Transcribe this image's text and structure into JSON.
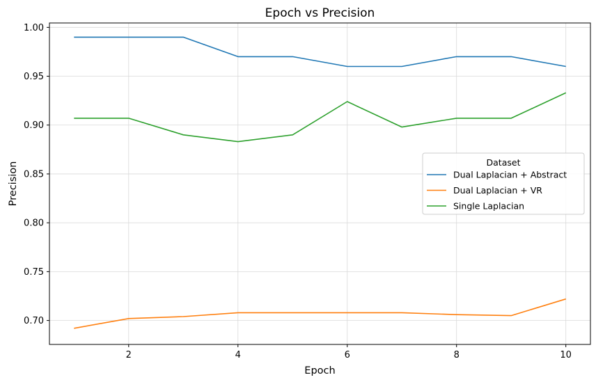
{
  "chart_data": {
    "type": "line",
    "title": "Epoch vs Precision",
    "xlabel": "Epoch",
    "ylabel": "Precision",
    "x": [
      1,
      2,
      3,
      4,
      5,
      6,
      7,
      8,
      9,
      10
    ],
    "xlim": [
      0.55,
      10.45
    ],
    "ylim": [
      0.6755,
      1.0045
    ],
    "xticks": [
      2,
      4,
      6,
      8,
      10
    ],
    "yticks": [
      0.7,
      0.75,
      0.8,
      0.85,
      0.9,
      0.95,
      1.0
    ],
    "ytick_labels": [
      "0.70",
      "0.75",
      "0.80",
      "0.85",
      "0.90",
      "0.95",
      "1.00"
    ],
    "grid": true,
    "legend": {
      "title": "Dataset",
      "placement": "center-right"
    },
    "series": [
      {
        "name": "Dual Laplacian + Abstract",
        "color": "#1f77b4",
        "values": [
          0.99,
          0.99,
          0.99,
          0.97,
          0.97,
          0.96,
          0.96,
          0.97,
          0.97,
          0.96
        ]
      },
      {
        "name": "Dual Laplacian + VR",
        "color": "#ff7f0e",
        "values": [
          0.692,
          0.702,
          0.704,
          0.708,
          0.708,
          0.708,
          0.708,
          0.706,
          0.705,
          0.722
        ]
      },
      {
        "name": "Single Laplacian",
        "color": "#2ca02c",
        "values": [
          0.907,
          0.907,
          0.89,
          0.883,
          0.89,
          0.924,
          0.898,
          0.907,
          0.907,
          0.933
        ]
      }
    ]
  }
}
